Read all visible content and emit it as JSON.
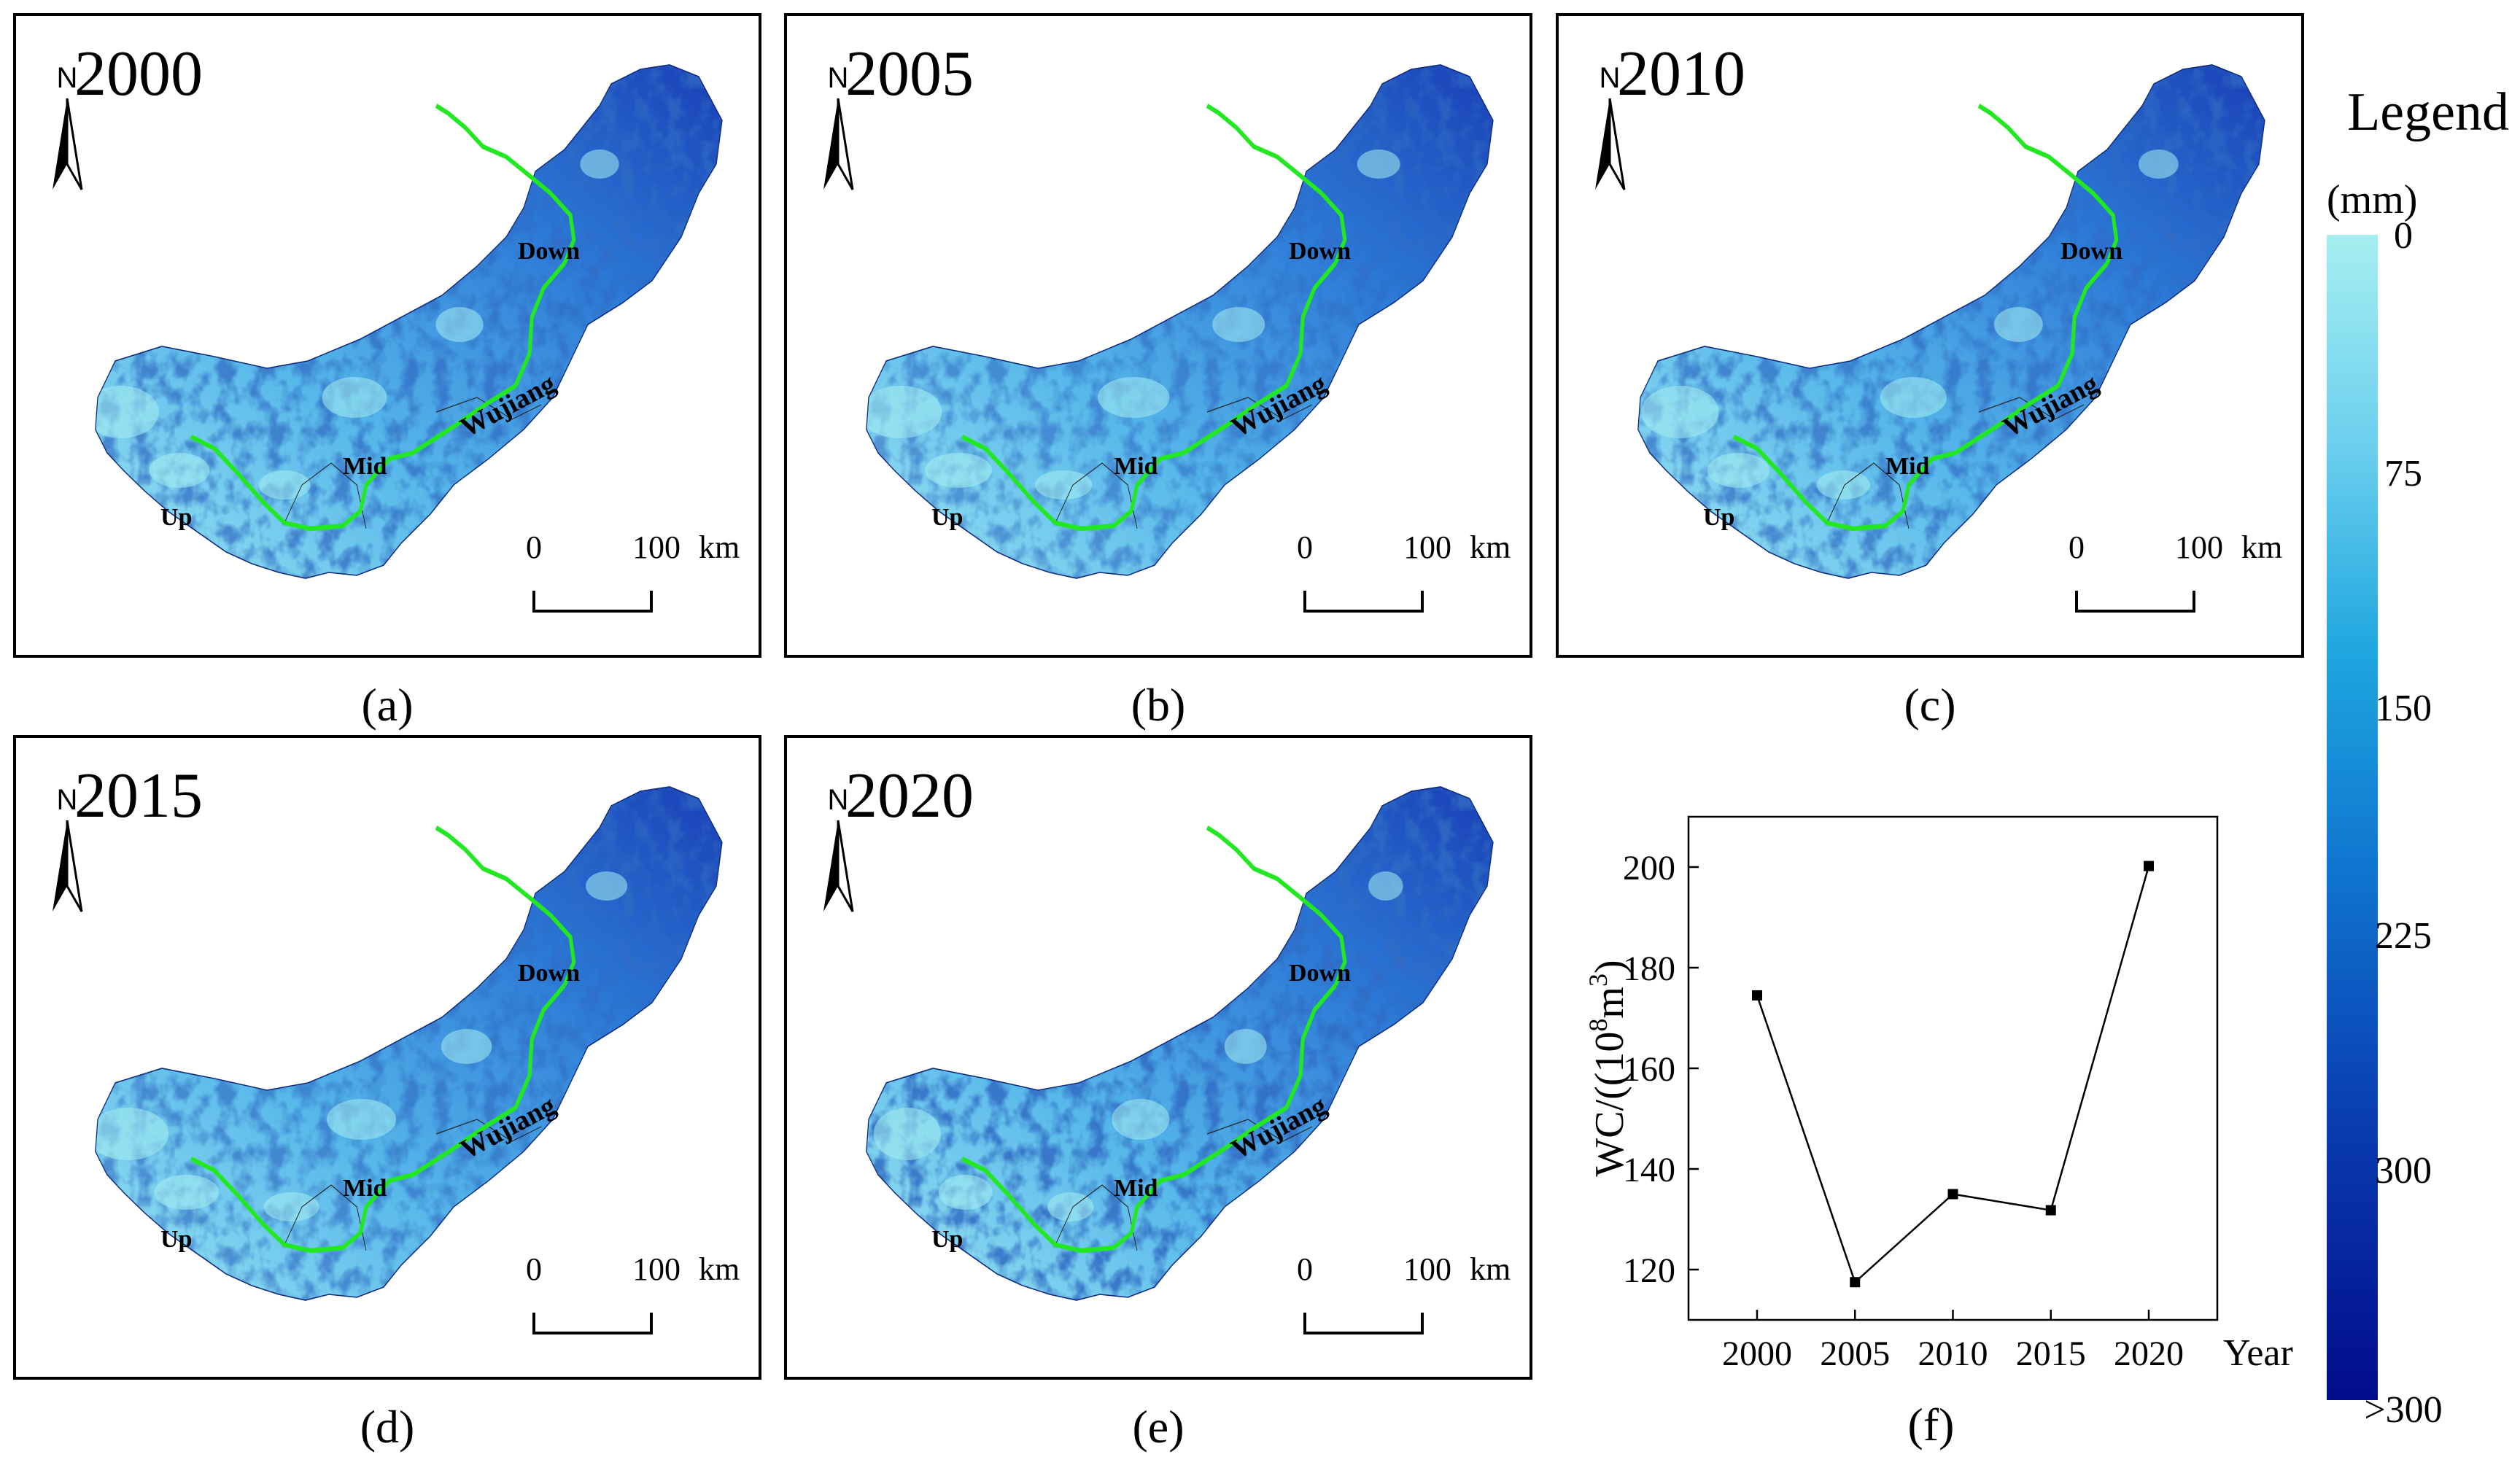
{
  "panels": [
    {
      "year": "2000",
      "caption": "(a)",
      "intensity": 0.55
    },
    {
      "year": "2005",
      "caption": "(b)",
      "intensity": 0.35
    },
    {
      "year": "2010",
      "caption": "(c)",
      "intensity": 0.5
    },
    {
      "year": "2015",
      "caption": "(d)",
      "intensity": 0.42
    },
    {
      "year": "2020",
      "caption": "(e)",
      "intensity": 0.75
    }
  ],
  "map_labels": {
    "north": "N",
    "up": "Up",
    "mid": "Mid",
    "down": "Down",
    "river": "Wujiang",
    "scale_zero": "0",
    "scale_hundred": "100",
    "scale_unit": "km"
  },
  "legend": {
    "title": "Legend",
    "unit": "(mm)",
    "ticks": [
      "0",
      "75",
      "150",
      "225",
      "300",
      ">300"
    ],
    "color_low": "#a6eef0",
    "color_high": "#020c8a"
  },
  "colors": {
    "reach_line": "#22e822",
    "map_light": "#8fdcef",
    "map_dark": "#1330b0"
  },
  "chart_caption": "(f)",
  "chart_data": {
    "type": "line",
    "x": [
      2000,
      2005,
      2010,
      2015,
      2020
    ],
    "values": [
      174.5,
      117.5,
      135,
      131.8,
      200.2
    ],
    "xlabel": "Year",
    "ylabel_main": "WC/((10",
    "ylabel_sup1": "8",
    "ylabel_mid": "m",
    "ylabel_sup2": "3",
    "ylabel_end": ")",
    "ylim": [
      110,
      210
    ],
    "xlim": [
      1996.5,
      2023.5
    ],
    "yticks": [
      120,
      140,
      160,
      180,
      200
    ],
    "xticks": [
      2000,
      2005,
      2010,
      2015,
      2020
    ],
    "grid": false
  }
}
